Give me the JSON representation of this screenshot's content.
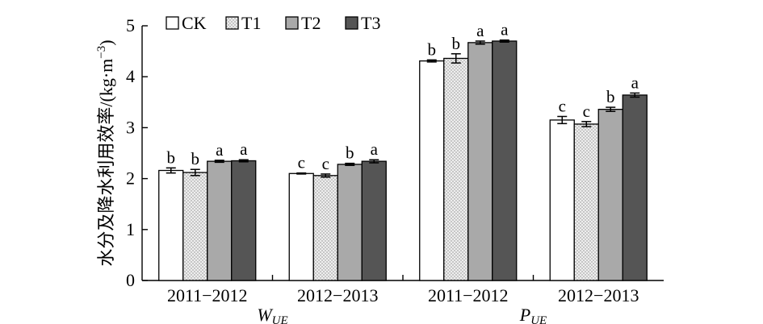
{
  "chart_data": {
    "type": "bar",
    "ylabel": "水分及降水利用效率/(kg·m",
    "ylabel_sup": "−3",
    "ylabel_end": ")",
    "ylim": [
      0,
      5
    ],
    "yticks": [
      "0",
      "1",
      "2",
      "3",
      "4",
      "5"
    ],
    "legend": [
      "CK",
      "T1",
      "T2",
      "T3"
    ],
    "legend_placement": "top-left",
    "grid": false,
    "groups": [
      {
        "main": "W",
        "sub": "UE"
      },
      {
        "main": "P",
        "sub": "UE"
      }
    ],
    "categories": [
      {
        "label": "2011−2012",
        "group": 0
      },
      {
        "label": "2012−2013",
        "group": 0
      },
      {
        "label": "2011−2012",
        "group": 1
      },
      {
        "label": "2012−2013",
        "group": 1
      }
    ],
    "series": [
      {
        "name": "CK",
        "values": [
          2.16,
          2.1,
          4.31,
          3.15
        ],
        "errors": [
          0.05,
          0.01,
          0.02,
          0.07
        ],
        "letters": [
          "b",
          "c",
          "b",
          "c"
        ]
      },
      {
        "name": "T1",
        "values": [
          2.12,
          2.06,
          4.36,
          3.07
        ],
        "errors": [
          0.06,
          0.03,
          0.09,
          0.05
        ],
        "letters": [
          "b",
          "c",
          "b",
          "c"
        ]
      },
      {
        "name": "T2",
        "values": [
          2.34,
          2.28,
          4.67,
          3.36
        ],
        "errors": [
          0.02,
          0.02,
          0.03,
          0.04
        ],
        "letters": [
          "a",
          "b",
          "a",
          "b"
        ]
      },
      {
        "name": "T3",
        "values": [
          2.35,
          2.34,
          4.7,
          3.64
        ],
        "errors": [
          0.02,
          0.03,
          0.02,
          0.04
        ],
        "letters": [
          "a",
          "a",
          "a",
          "a"
        ]
      }
    ],
    "colors": {
      "CK": "#ffffff",
      "T1": "#e4e4e4",
      "T2": "#a9a9a9",
      "T3": "#555555"
    }
  }
}
